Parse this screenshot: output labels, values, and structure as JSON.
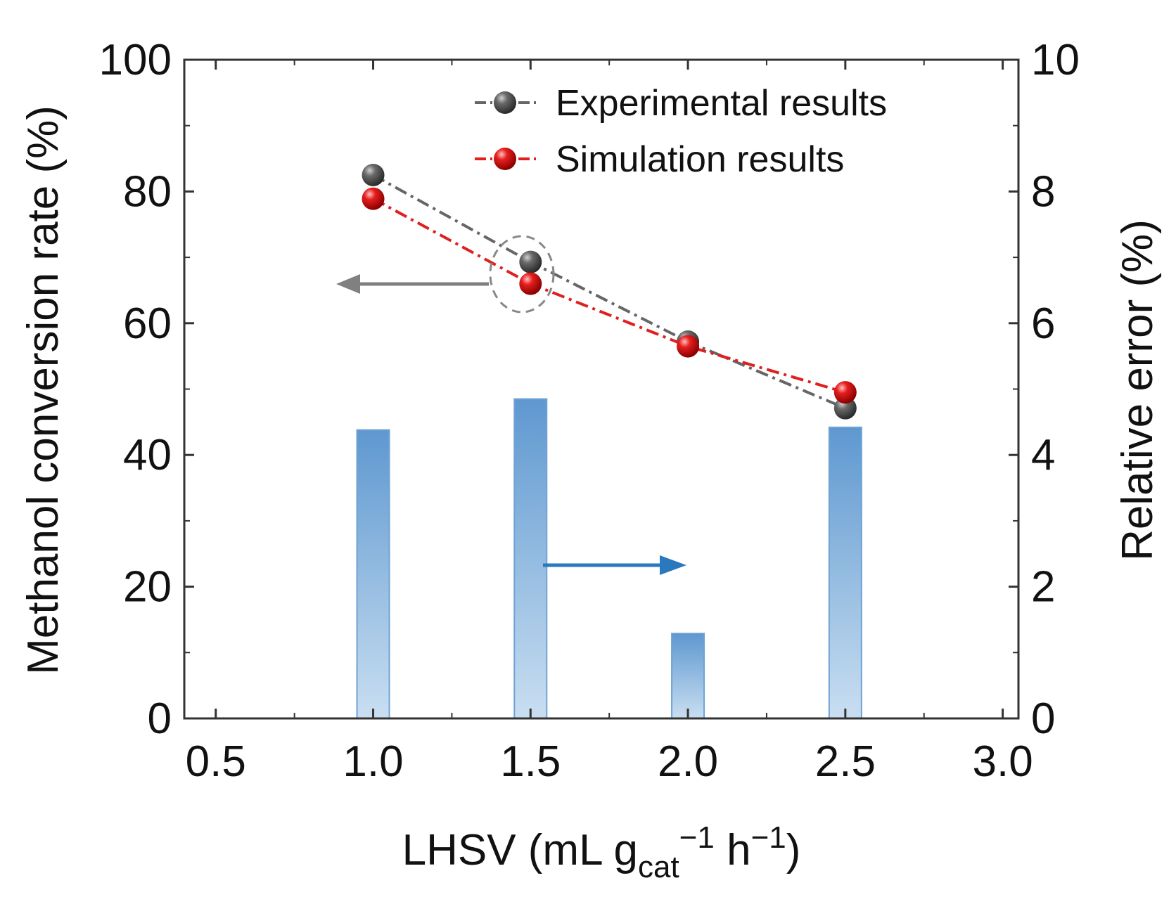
{
  "chart_data": {
    "type": "bar+line",
    "title": "",
    "xlabel": {
      "main": "LHSV (mL g",
      "sub": "cat",
      "sup1": "−1",
      "mid": " h",
      "sup2": "−1",
      "close": ")"
    },
    "ylabel_left": "Methanol conversion rate (%)",
    "ylabel_right": "Relative error (%)",
    "xlim": [
      0.4,
      3.05
    ],
    "ylim_left": [
      0,
      100
    ],
    "ylim_right": [
      0,
      10
    ],
    "xticks": [
      "0.5",
      "1.0",
      "1.5",
      "2.0",
      "2.5",
      "3.0"
    ],
    "yticks_left": [
      "0",
      "20",
      "40",
      "60",
      "80",
      "100"
    ],
    "yticks_right": [
      "0",
      "2",
      "4",
      "6",
      "8",
      "10"
    ],
    "grid": false,
    "legend_position": "top-right",
    "x": [
      1.0,
      1.5,
      2.0,
      2.5
    ],
    "series": [
      {
        "name": "Experimental results",
        "axis": "left",
        "kind": "line",
        "color": "#666666",
        "values": [
          82.5,
          69.3,
          57.2,
          47.1
        ]
      },
      {
        "name": "Simulation results",
        "axis": "left",
        "kind": "line",
        "color": "#e01f1f",
        "values": [
          78.9,
          66.0,
          56.5,
          49.5
        ]
      },
      {
        "axis": "right",
        "kind": "bar",
        "color": "#6fa3d4",
        "values": [
          4.38,
          4.85,
          1.29,
          4.42
        ]
      }
    ],
    "annotations": [
      {
        "type": "arrow",
        "direction": "left",
        "meaning": "points to left axis",
        "color": "#808080"
      },
      {
        "type": "arrow",
        "direction": "right",
        "meaning": "points to right axis",
        "color": "#2a78be"
      },
      {
        "type": "dashed-circle",
        "around_x": 1.5
      }
    ]
  }
}
